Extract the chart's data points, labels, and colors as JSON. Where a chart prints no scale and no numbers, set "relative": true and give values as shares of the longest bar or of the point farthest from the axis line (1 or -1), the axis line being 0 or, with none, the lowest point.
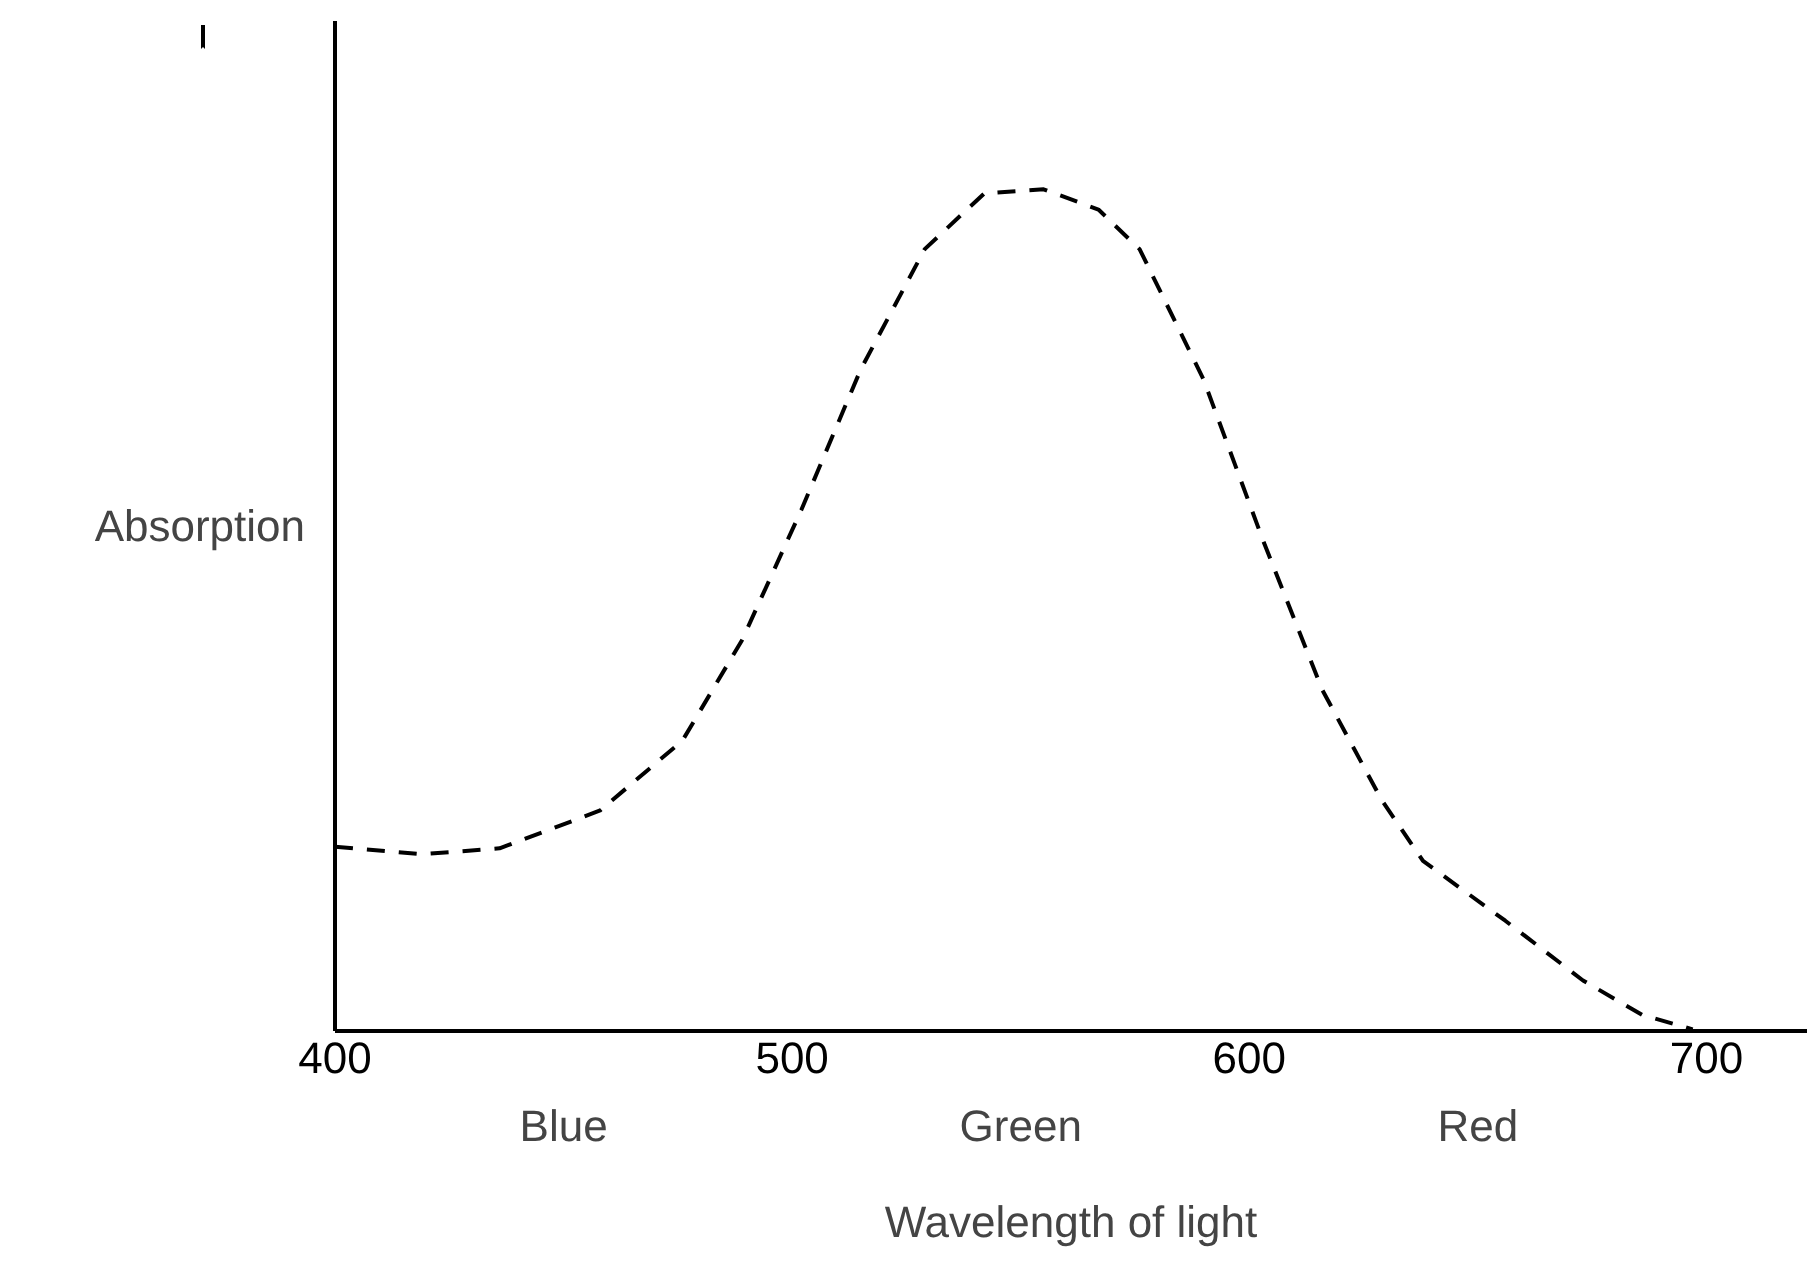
{
  "chart_data": {
    "type": "line",
    "relative": true,
    "xlabel": "Wavelength of light",
    "ylabel": "Absorption",
    "xlim": [
      400,
      722
    ],
    "xticks": [
      400,
      500,
      600,
      700
    ],
    "grid": false,
    "line_style": "dashed",
    "tick_labels": "x",
    "annotations": [
      "Blue",
      "Green",
      "Red"
    ],
    "series": [
      {
        "color": "#000000",
        "x": [
          400,
          419,
          436,
          458,
          476,
          489,
          502,
          515,
          529,
          542,
          555,
          567,
          576,
          590,
          603,
          616,
          629,
          638,
          656,
          673,
          686,
          697
        ],
        "values": [
          0.219,
          0.21,
          0.217,
          0.262,
          0.345,
          0.464,
          0.619,
          0.786,
          0.929,
          0.995,
          1.0,
          0.976,
          0.929,
          0.774,
          0.583,
          0.405,
          0.274,
          0.202,
          0.131,
          0.06,
          0.019,
          0.002
        ]
      }
    ]
  }
}
